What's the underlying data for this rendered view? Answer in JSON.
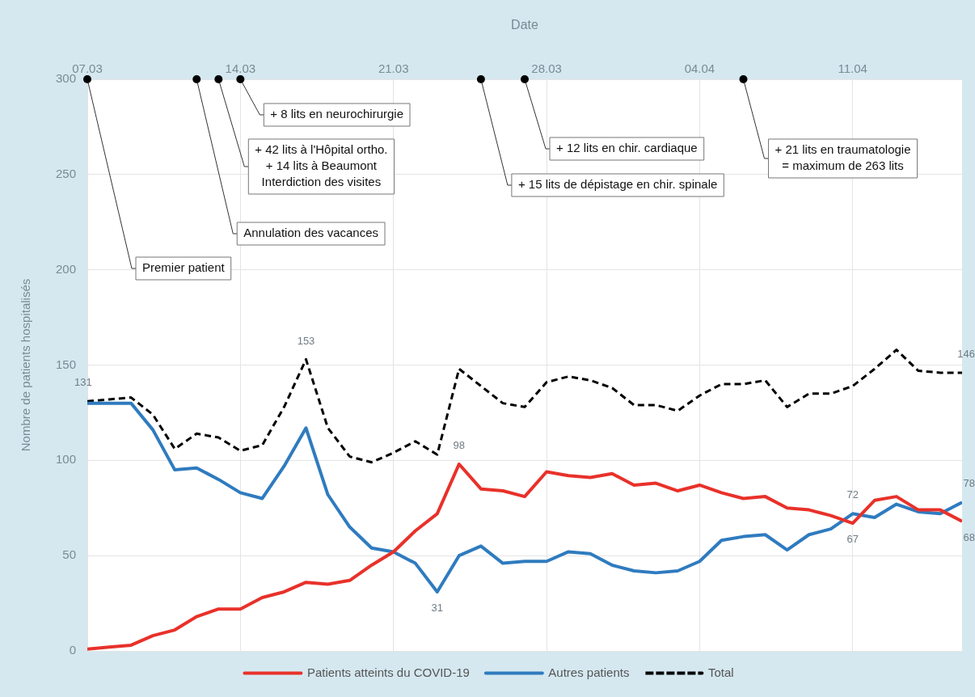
{
  "chart_data": {
    "type": "line",
    "xlabel": "Date",
    "ylabel": "Nombre de patients hospitalisés",
    "x": [
      "--03-07",
      "--03-08",
      "--03-09",
      "--03-10",
      "--03-11",
      "--03-12",
      "--03-13",
      "--03-14",
      "--03-15",
      "--03-16",
      "--03-17",
      "--03-18",
      "--03-19",
      "--03-20",
      "--03-21",
      "--03-22",
      "--03-23",
      "--03-24",
      "--03-25",
      "--03-26",
      "--03-27",
      "--03-28",
      "--03-29",
      "--03-30",
      "--03-31",
      "--04-01",
      "--04-02",
      "--04-03",
      "--04-04",
      "--04-05",
      "--04-06",
      "--04-07",
      "--04-08",
      "--04-09",
      "--04-10",
      "--04-11",
      "--04-12",
      "--04-13",
      "--04-14",
      "--04-15",
      "--04-16"
    ],
    "xlim": [
      "--03-07",
      "--04-16"
    ],
    "xticks": [
      {
        "value": "--03-07",
        "label": "07.03"
      },
      {
        "value": "--03-14",
        "label": "14.03"
      },
      {
        "value": "--03-21",
        "label": "21.03"
      },
      {
        "value": "--03-28",
        "label": "28.03"
      },
      {
        "value": "--04-04",
        "label": "04.04"
      },
      {
        "value": "--04-11",
        "label": "11.04"
      }
    ],
    "ylim": [
      0,
      300
    ],
    "yticks": [
      0,
      50,
      100,
      150,
      200,
      250,
      300
    ],
    "series": [
      {
        "name": "Patients atteints du COVID-19",
        "color": "#e8312a",
        "line_style": "solid",
        "values": [
          1,
          2,
          3,
          8,
          11,
          18,
          22,
          22,
          28,
          31,
          36,
          35,
          37,
          45,
          52,
          63,
          72,
          98,
          85,
          84,
          81,
          94,
          92,
          91,
          93,
          87,
          88,
          84,
          87,
          83,
          80,
          81,
          75,
          74,
          71,
          67,
          79,
          81,
          74,
          74,
          68
        ],
        "value_labels": [
          null,
          null,
          null,
          null,
          null,
          null,
          null,
          null,
          null,
          null,
          null,
          null,
          null,
          null,
          null,
          null,
          null,
          "98",
          null,
          null,
          null,
          null,
          null,
          null,
          null,
          null,
          null,
          null,
          null,
          null,
          null,
          null,
          null,
          null,
          null,
          "67",
          null,
          null,
          null,
          null,
          "68"
        ]
      },
      {
        "name": "Autres patients",
        "color": "#2f7bbf",
        "line_style": "solid",
        "values": [
          130,
          130,
          130,
          116,
          95,
          96,
          90,
          83,
          80,
          97,
          117,
          82,
          65,
          54,
          52,
          46,
          31,
          50,
          55,
          46,
          47,
          47,
          52,
          51,
          45,
          42,
          41,
          42,
          47,
          58,
          60,
          61,
          53,
          61,
          64,
          72,
          70,
          77,
          73,
          72,
          78
        ],
        "value_labels": [
          null,
          null,
          null,
          null,
          null,
          null,
          null,
          null,
          null,
          null,
          null,
          null,
          null,
          null,
          null,
          null,
          "31",
          null,
          null,
          null,
          null,
          null,
          null,
          null,
          null,
          null,
          null,
          null,
          null,
          null,
          null,
          null,
          null,
          null,
          null,
          "72",
          null,
          null,
          null,
          null,
          "78"
        ]
      },
      {
        "name": "Total",
        "color": "#000000",
        "line_style": "dashed",
        "values": [
          131,
          132,
          133,
          124,
          106,
          114,
          112,
          105,
          108,
          128,
          153,
          117,
          102,
          99,
          104,
          110,
          103,
          148,
          139,
          130,
          128,
          141,
          144,
          142,
          138,
          129,
          129,
          126,
          134,
          140,
          140,
          142,
          128,
          135,
          135,
          139,
          148,
          158,
          147,
          146,
          146
        ],
        "value_labels": [
          "131",
          null,
          null,
          null,
          null,
          null,
          null,
          null,
          null,
          null,
          "153",
          null,
          null,
          null,
          null,
          null,
          null,
          null,
          null,
          null,
          null,
          null,
          null,
          null,
          null,
          null,
          null,
          null,
          null,
          null,
          null,
          null,
          null,
          null,
          null,
          null,
          null,
          null,
          null,
          null,
          "146"
        ]
      }
    ],
    "annotations": [
      {
        "text": "Premier patient",
        "x": "--03-07",
        "y": 300
      },
      {
        "text": "Annulation des vacances",
        "x": "--03-12",
        "y": 300
      },
      {
        "text": "+ 42 lits à l'Hôpital ortho.\n+ 14 lits à Beaumont\nInterdiction des visites",
        "x": "--03-13",
        "y": 300
      },
      {
        "text": "+ 8 lits en neurochirurgie",
        "x": "--03-14",
        "y": 300
      },
      {
        "text": "+ 15 lits de dépistage en chir. spinale",
        "x": "--03-25",
        "y": 300
      },
      {
        "text": "+ 12 lits en chir. cardiaque",
        "x": "--03-27",
        "y": 300
      },
      {
        "text": "+ 21 lits en traumatologie\n= maximum de 263 lits",
        "x": "--04-06",
        "y": 300
      }
    ],
    "grid": true,
    "legend": "bottom",
    "marker": "none"
  }
}
